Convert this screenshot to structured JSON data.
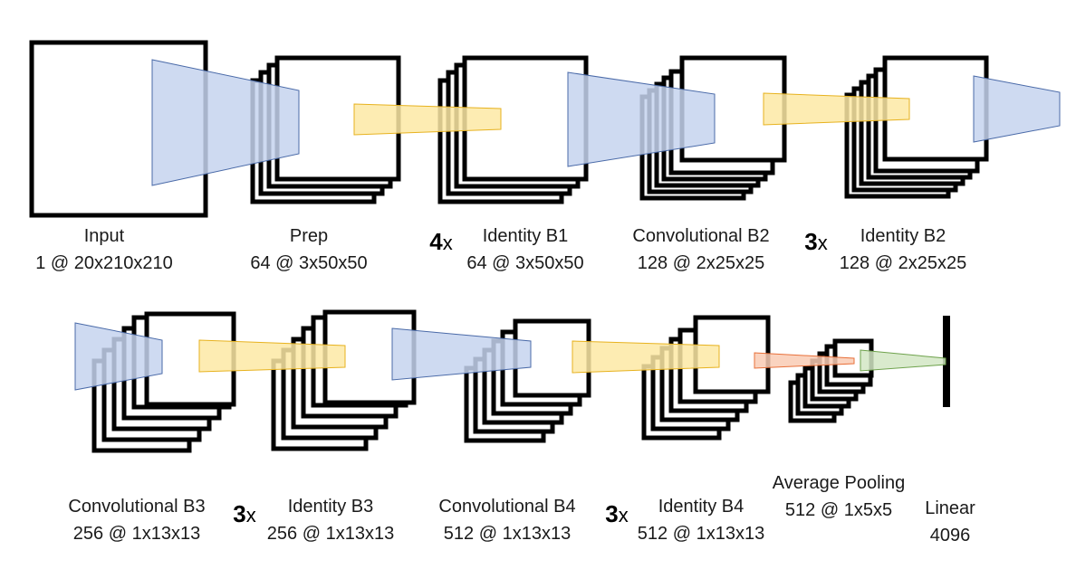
{
  "title": "CNN architecture diagram",
  "colors": {
    "blue_fill": "#c5d3ee",
    "blue_stroke": "#4a6aa8",
    "yellow_fill": "#fde9a4",
    "yellow_stroke": "#e7b21f",
    "orange_fill": "#f9cbb4",
    "orange_stroke": "#e8703a",
    "green_fill": "#d2e6c4",
    "green_stroke": "#6ea24c"
  },
  "labels": {
    "input": {
      "name": "Input",
      "dims": "1 @ 20x210x210"
    },
    "prep": {
      "name": "Prep",
      "dims": "64 @ 3x50x50"
    },
    "identity_b1": {
      "name": "Identity B1",
      "dims": "64 @ 3x50x50",
      "repeat_n": "4",
      "repeat_x": "x"
    },
    "conv_b2": {
      "name": "Convolutional B2",
      "dims": "128 @ 2x25x25"
    },
    "identity_b2": {
      "name": "Identity B2",
      "dims": "128 @ 2x25x25",
      "repeat_n": "3",
      "repeat_x": "x"
    },
    "conv_b3": {
      "name": "Convolutional B3",
      "dims": "256 @ 1x13x13"
    },
    "identity_b3": {
      "name": "Identity B3",
      "dims": "256 @ 1x13x13",
      "repeat_n": "3",
      "repeat_x": "x"
    },
    "conv_b4": {
      "name": "Convolutional B4",
      "dims": "512 @ 1x13x13"
    },
    "identity_b4": {
      "name": "Identity B4",
      "dims": "512 @ 1x13x13",
      "repeat_n": "3",
      "repeat_x": "x"
    },
    "avg_pool": {
      "name": "Average Pooling",
      "dims": "512 @ 1x5x5"
    },
    "linear": {
      "name": "Linear",
      "dims": "4096"
    }
  }
}
